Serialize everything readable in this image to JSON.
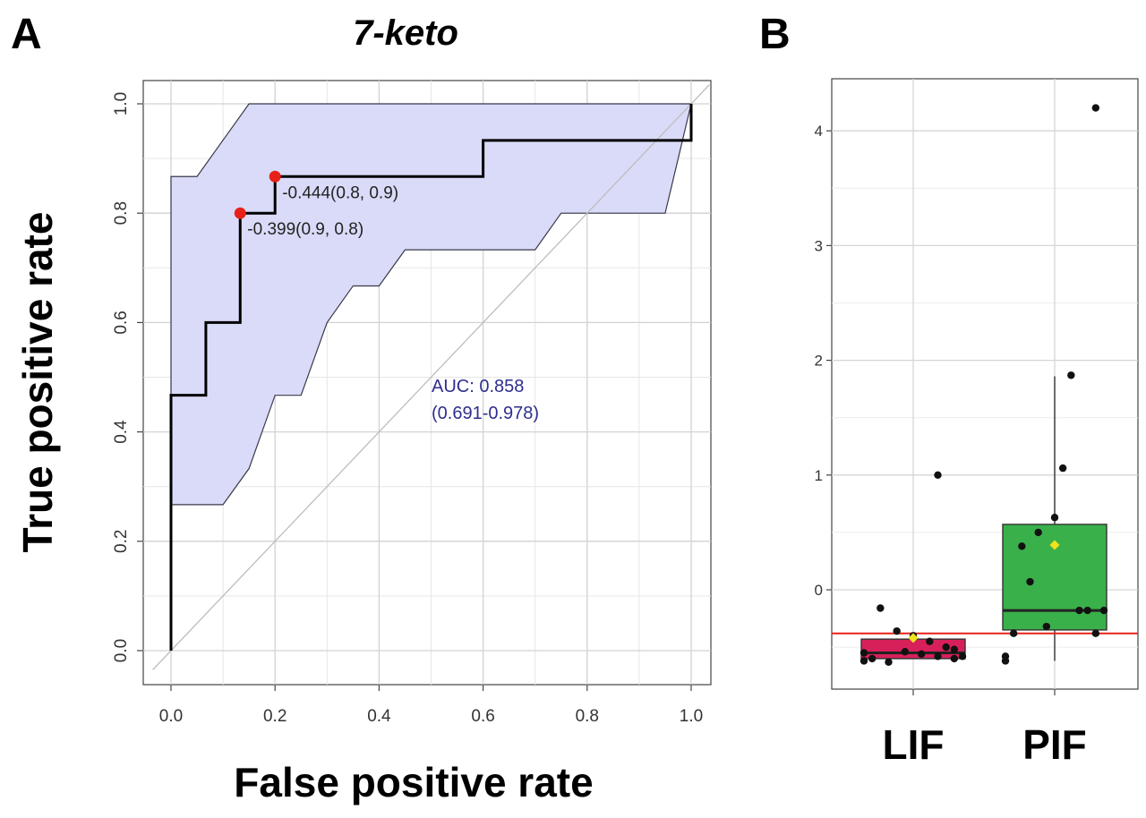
{
  "panels": {
    "a_label": "A",
    "b_label": "B"
  },
  "chart_data": [
    {
      "type": "line",
      "title": "7-keto",
      "xlabel": "False positive rate",
      "ylabel": "True positive rate",
      "xlim": [
        0,
        1
      ],
      "ylim": [
        0,
        1
      ],
      "x_ticks": [
        0,
        0.2,
        0.4,
        0.6,
        0.8,
        1.0
      ],
      "x_tick_labels": [
        "0.0",
        "0.2",
        "0.4",
        "0.6",
        "0.8",
        "1.0"
      ],
      "y_ticks": [
        0,
        0.2,
        0.4,
        0.6,
        0.8,
        1.0
      ],
      "y_tick_labels": [
        "0.0",
        "0.2",
        "0.4",
        "0.6",
        "0.8",
        "1.0"
      ],
      "grid": true,
      "roc_curve": [
        [
          0,
          0
        ],
        [
          0,
          0.467
        ],
        [
          0.067,
          0.467
        ],
        [
          0.067,
          0.6
        ],
        [
          0.133,
          0.6
        ],
        [
          0.133,
          0.8
        ],
        [
          0.2,
          0.8
        ],
        [
          0.2,
          0.867
        ],
        [
          0.6,
          0.867
        ],
        [
          0.6,
          0.933
        ],
        [
          1.0,
          0.933
        ],
        [
          1.0,
          1.0
        ]
      ],
      "confidence_band_upper": [
        [
          0,
          0.867
        ],
        [
          0.05,
          0.867
        ],
        [
          0.15,
          1.0
        ],
        [
          1.0,
          1.0
        ]
      ],
      "confidence_band_lower": [
        [
          1.0,
          1.0
        ],
        [
          0.95,
          0.8
        ],
        [
          0.75,
          0.8
        ],
        [
          0.7,
          0.733
        ],
        [
          0.45,
          0.733
        ],
        [
          0.4,
          0.667
        ],
        [
          0.35,
          0.667
        ],
        [
          0.3,
          0.6
        ],
        [
          0.25,
          0.467
        ],
        [
          0.2,
          0.467
        ],
        [
          0.15,
          0.333
        ],
        [
          0.1,
          0.267
        ],
        [
          0,
          0.267
        ]
      ],
      "band_color": "#d9dbf8",
      "band_edge_color": "#3a3a4a",
      "curve_color": "#000000",
      "diagonal_color": "#bdbdbd",
      "threshold_points": [
        {
          "x": 0.2,
          "y": 0.867,
          "label": "-0.444(0.8, 0.9)"
        },
        {
          "x": 0.133,
          "y": 0.8,
          "label": "-0.399(0.9, 0.8)"
        }
      ],
      "threshold_color": "#e8201a",
      "annotation_color": "#2e2e8e",
      "annotations": [
        "AUC: 0.858",
        "(0.691-0.978)"
      ]
    },
    {
      "type": "box",
      "categories": [
        "LIF",
        "PIF"
      ],
      "ylim": [
        -0.85,
        4.45
      ],
      "y_ticks": [
        0,
        1,
        2,
        3,
        4
      ],
      "y_tick_labels": [
        "0",
        "1",
        "2",
        "3",
        "4"
      ],
      "grid": true,
      "reference_line": -0.38,
      "reference_line_color": "#e8201a",
      "boxes": [
        {
          "category": "LIF",
          "fill": "#d7205a",
          "q1": -0.6,
          "median": -0.55,
          "q3": -0.43,
          "whisker_low": -0.6,
          "whisker_high": -0.43,
          "mean": -0.42,
          "points": [
            -0.62,
            -0.6,
            -0.58,
            -0.56,
            -0.54,
            -0.63,
            -0.6,
            -0.58,
            -0.5,
            -0.45,
            -0.4,
            -0.36,
            -0.16,
            -0.55,
            -0.52,
            1.0
          ]
        },
        {
          "category": "PIF",
          "fill": "#3ab04a",
          "q1": -0.35,
          "median": -0.18,
          "q3": 0.57,
          "whisker_low": -0.62,
          "whisker_high": 1.86,
          "mean": 0.39,
          "points": [
            -0.62,
            -0.38,
            -0.18,
            1.06,
            -0.32,
            0.07,
            -0.38,
            -0.18,
            -0.18,
            1.87,
            0.63,
            0.5,
            0.38,
            -0.58,
            4.2
          ]
        }
      ],
      "mean_marker_color": "#f2e21e"
    }
  ]
}
